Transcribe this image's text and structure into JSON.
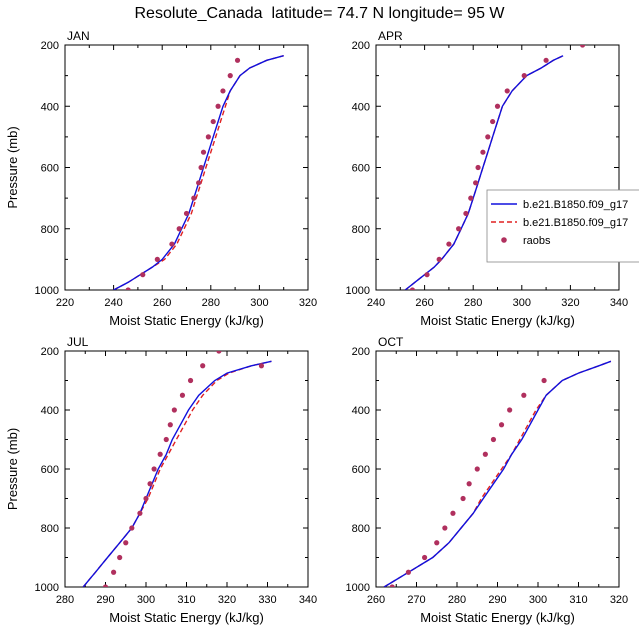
{
  "figure": {
    "title": "Resolute_Canada  latitude= 74.7 N longitude= 95 W"
  },
  "legend": {
    "items": [
      {
        "label": "b.e21.B1850.f09_g17",
        "color": "#1010dd",
        "style": "solid"
      },
      {
        "label": "b.e21.B1850.f09_g17",
        "color": "#e02020",
        "style": "dashed"
      },
      {
        "label": "raobs",
        "color": "#b0305e",
        "style": "marker"
      }
    ],
    "placement": "right, overlapping APR panel"
  },
  "chart_data": [
    {
      "type": "line",
      "panel": "JAN",
      "xlabel": "Moist Static Energy (kJ/kg)",
      "ylabel": "Pressure (mb)",
      "xlim": [
        220,
        320
      ],
      "ylim": [
        1000,
        200
      ],
      "xticks": [
        220,
        240,
        260,
        280,
        300,
        320
      ],
      "yticks": [
        200,
        400,
        600,
        800,
        1000
      ],
      "pressure": [
        1000,
        975,
        950,
        925,
        900,
        850,
        800,
        750,
        700,
        650,
        600,
        550,
        500,
        450,
        400,
        350,
        300,
        275,
        250,
        235
      ],
      "series": [
        {
          "name": "b.e21.B1850.f09_g17",
          "color": "#1010dd",
          "dash": "solid",
          "x": [
            240,
            246,
            251,
            256,
            260,
            265,
            268,
            271,
            273,
            275,
            277,
            279,
            281,
            283,
            285,
            288,
            292,
            296,
            303,
            310
          ]
        },
        {
          "name": "b.e21.B1850.f09_g17",
          "color": "#e02020",
          "dash": "dashed",
          "x": [
            240,
            246,
            251,
            256,
            261,
            266,
            269,
            272,
            274,
            276,
            278,
            280,
            282,
            284,
            286,
            288,
            292,
            296,
            303,
            310
          ]
        }
      ],
      "raobs": {
        "name": "raobs",
        "color": "#b0305e",
        "x": [
          246,
          252,
          258,
          264,
          267,
          270,
          273,
          275,
          276,
          277,
          279,
          281,
          283,
          285,
          288,
          291
        ],
        "p": [
          1000,
          950,
          900,
          850,
          800,
          750,
          700,
          650,
          600,
          550,
          500,
          450,
          400,
          350,
          300,
          250
        ]
      }
    },
    {
      "type": "line",
      "panel": "APR",
      "xlabel": "Moist Static Energy (kJ/kg)",
      "ylabel": "",
      "xlim": [
        240,
        340
      ],
      "ylim": [
        1000,
        200
      ],
      "xticks": [
        240,
        260,
        280,
        300,
        320,
        340
      ],
      "yticks": [
        200,
        400,
        600,
        800,
        1000
      ],
      "pressure": [
        1000,
        975,
        950,
        925,
        900,
        850,
        800,
        750,
        700,
        650,
        600,
        550,
        500,
        450,
        400,
        350,
        300,
        275,
        250,
        235
      ],
      "series": [
        {
          "name": "b.e21.B1850.f09_g17",
          "color": "#1010dd",
          "dash": "solid",
          "x": [
            252,
            256,
            260,
            264,
            267,
            272,
            275,
            278,
            280,
            282,
            284,
            286,
            288,
            290,
            292,
            296,
            302,
            308,
            313,
            317
          ]
        },
        {
          "name": "b.e21.B1850.f09_g17",
          "color": "#e02020",
          "dash": "dashed",
          "x": [
            252,
            256,
            260,
            264,
            267,
            272,
            275,
            278,
            280,
            282,
            284,
            286,
            288,
            290,
            292,
            296,
            302,
            308,
            313,
            317
          ]
        }
      ],
      "raobs": {
        "name": "raobs",
        "color": "#b0305e",
        "x": [
          255,
          261,
          266,
          270,
          274,
          277,
          279,
          281,
          282,
          284,
          286,
          288,
          290,
          294,
          301,
          310,
          325
        ],
        "p": [
          1000,
          950,
          900,
          850,
          800,
          750,
          700,
          650,
          600,
          550,
          500,
          450,
          400,
          350,
          300,
          250,
          200
        ]
      }
    },
    {
      "type": "line",
      "panel": "JUL",
      "xlabel": "Moist Static Energy (kJ/kg)",
      "ylabel": "Pressure (mb)",
      "xlim": [
        280,
        340
      ],
      "ylim": [
        1000,
        200
      ],
      "xticks": [
        280,
        290,
        300,
        310,
        320,
        330,
        340
      ],
      "yticks": [
        200,
        400,
        600,
        800,
        1000
      ],
      "pressure": [
        1000,
        975,
        950,
        925,
        900,
        850,
        800,
        750,
        700,
        650,
        600,
        550,
        500,
        450,
        400,
        350,
        300,
        275,
        250,
        235
      ],
      "series": [
        {
          "name": "b.e21.B1850.f09_g17",
          "color": "#1010dd",
          "dash": "solid",
          "x": [
            284.5,
            286,
            287.5,
            289,
            290.5,
            293.5,
            296.5,
            298.5,
            300,
            301.5,
            303,
            305,
            306.5,
            308.5,
            310.5,
            313,
            317,
            320,
            326,
            331
          ]
        },
        {
          "name": "b.e21.B1850.f09_g17",
          "color": "#e02020",
          "dash": "dashed",
          "x": [
            284.5,
            286,
            287.5,
            289,
            290.5,
            293.5,
            296.5,
            298.5,
            300.5,
            302,
            303.5,
            305.5,
            307.5,
            309.5,
            311.5,
            314,
            317.5,
            320.5,
            326,
            331
          ]
        }
      ],
      "raobs": {
        "name": "raobs",
        "color": "#b0305e",
        "x": [
          290,
          292,
          293.5,
          295,
          296.5,
          298.5,
          300,
          301,
          302,
          303.5,
          305,
          306,
          307,
          309,
          311,
          314,
          318,
          328.5
        ],
        "p": [
          1000,
          950,
          900,
          850,
          800,
          750,
          700,
          650,
          600,
          550,
          500,
          450,
          400,
          350,
          300,
          250,
          200,
          250
        ]
      }
    },
    {
      "type": "line",
      "panel": "OCT",
      "xlabel": "Moist Static Energy (kJ/kg)",
      "ylabel": "",
      "xlim": [
        260,
        320
      ],
      "ylim": [
        1000,
        200
      ],
      "xticks": [
        260,
        270,
        280,
        290,
        300,
        310,
        320
      ],
      "yticks": [
        200,
        400,
        600,
        800,
        1000
      ],
      "pressure": [
        1000,
        975,
        950,
        925,
        900,
        850,
        800,
        750,
        700,
        650,
        600,
        550,
        500,
        450,
        400,
        350,
        300,
        275,
        250,
        235
      ],
      "series": [
        {
          "name": "b.e21.B1850.f09_g17",
          "color": "#1010dd",
          "dash": "solid",
          "x": [
            262,
            265,
            268,
            271,
            274,
            278,
            281,
            284,
            286.5,
            289,
            291.5,
            293.5,
            296,
            298,
            300,
            302,
            306,
            310,
            315,
            318
          ]
        },
        {
          "name": "b.e21.B1850.f09_g17",
          "color": "#e02020",
          "dash": "dashed",
          "x": [
            262,
            265,
            268,
            271,
            274,
            278,
            281,
            284,
            286,
            288.5,
            291,
            293.5,
            295.5,
            297.5,
            299.5,
            302,
            306,
            310,
            315,
            318
          ]
        }
      ],
      "raobs": {
        "name": "raobs",
        "color": "#b0305e",
        "x": [
          264,
          268,
          272,
          275,
          277,
          279,
          281.5,
          283,
          285,
          287,
          289,
          291,
          293,
          296.5,
          301.5
        ],
        "p": [
          1000,
          950,
          900,
          850,
          800,
          750,
          700,
          650,
          600,
          550,
          500,
          450,
          400,
          350,
          300
        ]
      }
    }
  ]
}
